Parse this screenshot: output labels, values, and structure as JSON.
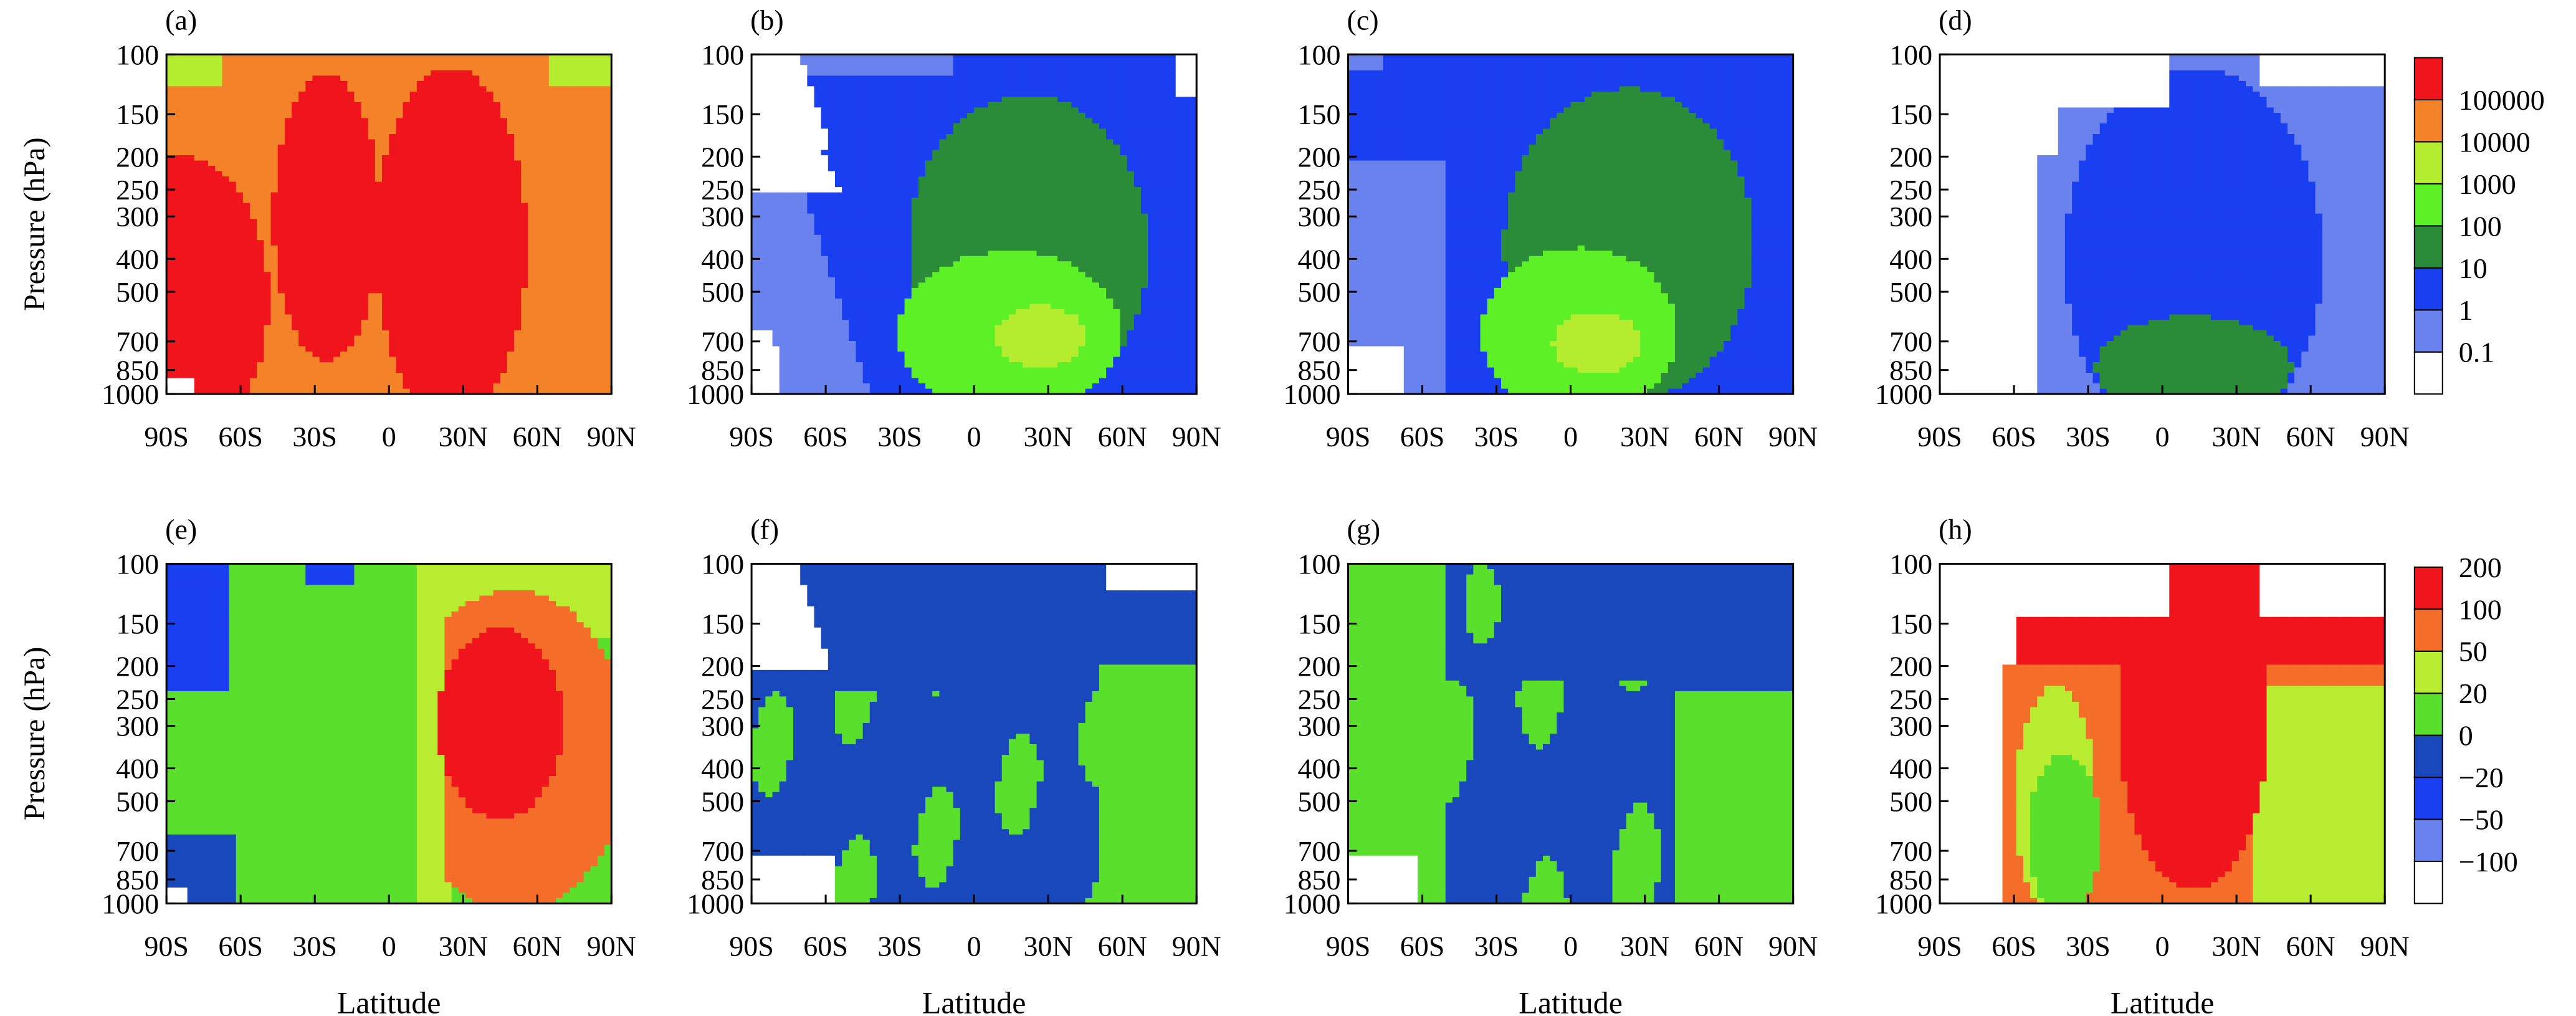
{
  "colors": {
    "top": [
      "#ffffff",
      "#6a82ee",
      "#1a3ff0",
      "#2a8c38",
      "#5ef026",
      "#b4ec30",
      "#f48228",
      "#f0141c"
    ],
    "bottom": [
      "#ffffff",
      "#6a82ee",
      "#1a3ff0",
      "#1948bc",
      "#5ae02c",
      "#b8ec30",
      "#f46e2a",
      "#f0141c"
    ]
  },
  "chart_data": [
    {
      "type": "heatmap",
      "panel": "(a)",
      "xlabel": "",
      "ylabel": "Pressure (hPa)",
      "xticks": [
        "90S",
        "60S",
        "30S",
        "0",
        "30N",
        "60N",
        "90N"
      ],
      "yticks": [
        "100",
        "150",
        "200",
        "250",
        "300",
        "400",
        "500",
        "700",
        "850",
        "1000"
      ],
      "xlim": [
        -90,
        90
      ],
      "ylim": [
        1000,
        100
      ],
      "yscale": "log",
      "colorbar": [
        "0.1",
        "1",
        "10",
        "100",
        "1000",
        "10000",
        "100000"
      ]
    },
    {
      "type": "heatmap",
      "panel": "(b)",
      "xlabel": "",
      "ylabel": "",
      "xticks": [
        "90S",
        "60S",
        "30S",
        "0",
        "30N",
        "60N",
        "90N"
      ],
      "yticks": [
        "100",
        "150",
        "200",
        "250",
        "300",
        "400",
        "500",
        "700",
        "850",
        "1000"
      ],
      "xlim": [
        -90,
        90
      ],
      "ylim": [
        1000,
        100
      ],
      "yscale": "log"
    },
    {
      "type": "heatmap",
      "panel": "(c)",
      "xlabel": "",
      "ylabel": "",
      "xticks": [
        "90S",
        "60S",
        "30S",
        "0",
        "30N",
        "60N",
        "90N"
      ],
      "yticks": [
        "100",
        "150",
        "200",
        "250",
        "300",
        "400",
        "500",
        "700",
        "850",
        "1000"
      ],
      "xlim": [
        -90,
        90
      ],
      "ylim": [
        1000,
        100
      ],
      "yscale": "log"
    },
    {
      "type": "heatmap",
      "panel": "(d)",
      "xlabel": "",
      "ylabel": "",
      "xticks": [
        "90S",
        "60S",
        "30S",
        "0",
        "30N",
        "60N",
        "90N"
      ],
      "yticks": [
        "100",
        "150",
        "200",
        "250",
        "300",
        "400",
        "500",
        "700",
        "850",
        "1000"
      ],
      "xlim": [
        -90,
        90
      ],
      "ylim": [
        1000,
        100
      ],
      "yscale": "log"
    },
    {
      "type": "heatmap",
      "panel": "(e)",
      "xlabel": "Latitude",
      "ylabel": "Pressure (hPa)",
      "xticks": [
        "90S",
        "60S",
        "30S",
        "0",
        "30N",
        "60N",
        "90N"
      ],
      "yticks": [
        "100",
        "150",
        "200",
        "250",
        "300",
        "400",
        "500",
        "700",
        "850",
        "1000"
      ],
      "xlim": [
        -90,
        90
      ],
      "ylim": [
        1000,
        100
      ],
      "yscale": "log",
      "colorbar": [
        "−100",
        "−50",
        "−20",
        "0",
        "20",
        "50",
        "100",
        "200"
      ]
    },
    {
      "type": "heatmap",
      "panel": "(f)",
      "xlabel": "Latitude",
      "ylabel": "",
      "xticks": [
        "90S",
        "60S",
        "30S",
        "0",
        "30N",
        "60N",
        "90N"
      ],
      "yticks": [
        "100",
        "150",
        "200",
        "250",
        "300",
        "400",
        "500",
        "700",
        "850",
        "1000"
      ],
      "xlim": [
        -90,
        90
      ],
      "ylim": [
        1000,
        100
      ],
      "yscale": "log"
    },
    {
      "type": "heatmap",
      "panel": "(g)",
      "xlabel": "Latitude",
      "ylabel": "",
      "xticks": [
        "90S",
        "60S",
        "30S",
        "0",
        "30N",
        "60N",
        "90N"
      ],
      "yticks": [
        "100",
        "150",
        "200",
        "250",
        "300",
        "400",
        "500",
        "700",
        "850",
        "1000"
      ],
      "xlim": [
        -90,
        90
      ],
      "ylim": [
        1000,
        100
      ],
      "yscale": "log"
    },
    {
      "type": "heatmap",
      "panel": "(h)",
      "xlabel": "Latitude",
      "ylabel": "",
      "xticks": [
        "90S",
        "60S",
        "30S",
        "0",
        "30N",
        "60N",
        "90N"
      ],
      "yticks": [
        "100",
        "150",
        "200",
        "250",
        "300",
        "400",
        "500",
        "700",
        "850",
        "1000"
      ],
      "xlim": [
        -90,
        90
      ],
      "ylim": [
        1000,
        100
      ],
      "yscale": "log"
    }
  ]
}
